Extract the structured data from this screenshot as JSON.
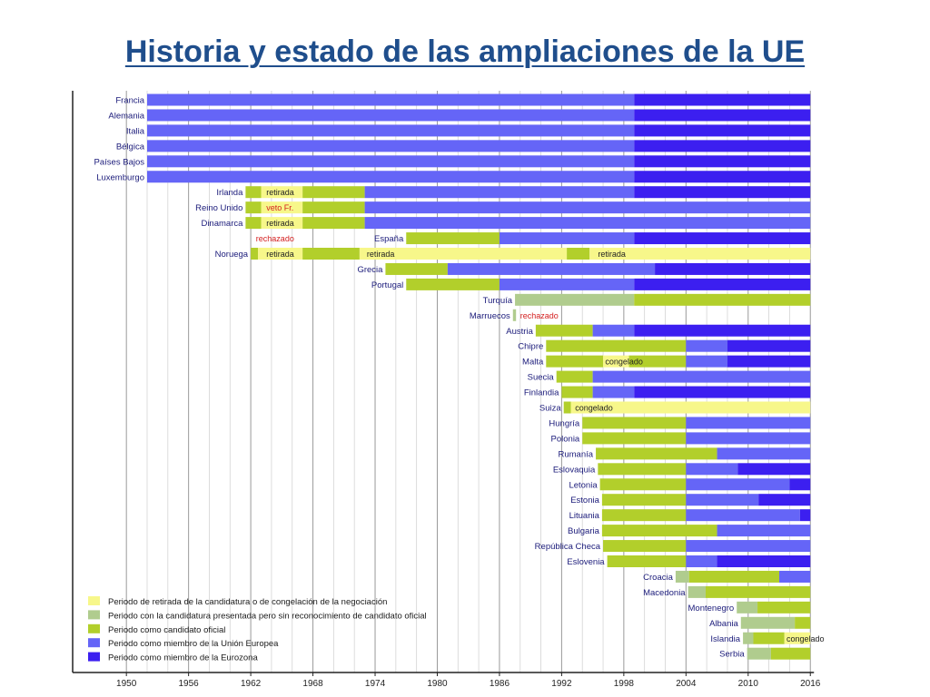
{
  "title": "Historia y estado de las ampliaciones de la UE",
  "chart_data": {
    "type": "timeline",
    "x_range": [
      1948,
      2016
    ],
    "x_ticks": [
      "1950",
      "1956",
      "1962",
      "1968",
      "1974",
      "1980",
      "1986",
      "1992",
      "1998",
      "2004",
      "2010",
      "2016"
    ],
    "colors": {
      "W": "#f7f78a",
      "P": "#b0cc8e",
      "C": "#b2cf2b",
      "M": "#6565f7",
      "E": "#3c1ff0"
    },
    "legend": [
      {
        "key": "W",
        "label": "Periodo de retirada de la candidatura o de congelación de la negociación"
      },
      {
        "key": "P",
        "label": "Periodo con la candidatura presentada pero sin reconocimiento de candidato oficial"
      },
      {
        "key": "C",
        "label": "Periodo como candidato oficial"
      },
      {
        "key": "M",
        "label": "Periodo como miembro de la Unión Europea"
      },
      {
        "key": "E",
        "label": "Periodo como miembro de la Eurozona"
      }
    ],
    "rows": [
      {
        "country": "Francia",
        "segments": [
          [
            "M",
            1952,
            1999
          ],
          [
            "E",
            1999,
            2016
          ]
        ]
      },
      {
        "country": "Alemania",
        "segments": [
          [
            "M",
            1952,
            1999
          ],
          [
            "E",
            1999,
            2016
          ]
        ]
      },
      {
        "country": "Italia",
        "segments": [
          [
            "M",
            1952,
            1999
          ],
          [
            "E",
            1999,
            2016
          ]
        ]
      },
      {
        "country": "Bélgica",
        "segments": [
          [
            "M",
            1952,
            1999
          ],
          [
            "E",
            1999,
            2016
          ]
        ]
      },
      {
        "country": "Países Bajos",
        "segments": [
          [
            "M",
            1952,
            1999
          ],
          [
            "E",
            1999,
            2016
          ]
        ]
      },
      {
        "country": "Luxemburgo",
        "segments": [
          [
            "M",
            1952,
            1999
          ],
          [
            "E",
            1999,
            2016
          ]
        ]
      },
      {
        "country": "Irlanda",
        "segments": [
          [
            "C",
            1961.5,
            1963
          ],
          [
            "W",
            1963,
            1967
          ],
          [
            "C",
            1967,
            1973
          ],
          [
            "M",
            1973,
            1999
          ],
          [
            "E",
            1999,
            2016
          ]
        ]
      },
      {
        "country": "Reino Unido",
        "segments": [
          [
            "C",
            1961.5,
            1963
          ],
          [
            "W",
            1963,
            1967
          ],
          [
            "C",
            1967,
            1973
          ],
          [
            "M",
            1973,
            2016
          ]
        ]
      },
      {
        "country": "Dinamarca",
        "segments": [
          [
            "C",
            1961.5,
            1963
          ],
          [
            "W",
            1963,
            1967
          ],
          [
            "C",
            1967,
            1973
          ],
          [
            "M",
            1973,
            2016
          ]
        ]
      },
      {
        "country": "España",
        "segments": [
          [
            "C",
            1977,
            1986
          ],
          [
            "M",
            1986,
            1999
          ],
          [
            "E",
            1999,
            2016
          ]
        ]
      },
      {
        "country": "Noruega",
        "segments": [
          [
            "C",
            1962,
            1962.7
          ],
          [
            "W",
            1962.7,
            1967
          ],
          [
            "C",
            1967,
            1972.5
          ],
          [
            "W",
            1972.5,
            1992.5
          ],
          [
            "C",
            1992.5,
            1994.7
          ],
          [
            "W",
            1994.7,
            2016
          ]
        ]
      },
      {
        "country": "Grecia",
        "segments": [
          [
            "C",
            1975,
            1981
          ],
          [
            "M",
            1981,
            2001
          ],
          [
            "E",
            2001,
            2016
          ]
        ]
      },
      {
        "country": "Portugal",
        "segments": [
          [
            "C",
            1977,
            1986
          ],
          [
            "M",
            1986,
            1999
          ],
          [
            "E",
            1999,
            2016
          ]
        ]
      },
      {
        "country": "Turquía",
        "segments": [
          [
            "P",
            1987.5,
            1999
          ],
          [
            "C",
            1999,
            2016
          ]
        ]
      },
      {
        "country": "Marruecos",
        "segments": [
          [
            "P",
            1987.3,
            1987.6
          ]
        ]
      },
      {
        "country": "Austria",
        "segments": [
          [
            "C",
            1989.5,
            1995
          ],
          [
            "M",
            1995,
            1999
          ],
          [
            "E",
            1999,
            2016
          ]
        ]
      },
      {
        "country": "Chipre",
        "segments": [
          [
            "C",
            1990.5,
            2004
          ],
          [
            "M",
            2004,
            2008
          ],
          [
            "E",
            2008,
            2016
          ]
        ]
      },
      {
        "country": "Malta",
        "segments": [
          [
            "C",
            1990.5,
            1996
          ],
          [
            "W",
            1996,
            1998.5
          ],
          [
            "C",
            1998.5,
            2004
          ],
          [
            "M",
            2004,
            2008
          ],
          [
            "E",
            2008,
            2016
          ]
        ]
      },
      {
        "country": "Suecia",
        "segments": [
          [
            "C",
            1991.5,
            1995
          ],
          [
            "M",
            1995,
            2016
          ]
        ]
      },
      {
        "country": "Finlandia",
        "segments": [
          [
            "C",
            1992,
            1995
          ],
          [
            "M",
            1995,
            1999
          ],
          [
            "E",
            1999,
            2016
          ]
        ]
      },
      {
        "country": "Suiza",
        "segments": [
          [
            "C",
            1992.2,
            1992.9
          ],
          [
            "W",
            1992.9,
            2016
          ]
        ]
      },
      {
        "country": "Hungría",
        "segments": [
          [
            "C",
            1994,
            2004
          ],
          [
            "M",
            2004,
            2016
          ]
        ]
      },
      {
        "country": "Polonia",
        "segments": [
          [
            "C",
            1994,
            2004
          ],
          [
            "M",
            2004,
            2016
          ]
        ]
      },
      {
        "country": "Rumanía",
        "segments": [
          [
            "C",
            1995.3,
            2007
          ],
          [
            "M",
            2007,
            2016
          ]
        ]
      },
      {
        "country": "Eslovaquia",
        "segments": [
          [
            "C",
            1995.5,
            2004
          ],
          [
            "M",
            2004,
            2009
          ],
          [
            "E",
            2009,
            2016
          ]
        ]
      },
      {
        "country": "Letonia",
        "segments": [
          [
            "C",
            1995.7,
            2004
          ],
          [
            "M",
            2004,
            2014
          ],
          [
            "E",
            2014,
            2016
          ]
        ]
      },
      {
        "country": "Estonia",
        "segments": [
          [
            "C",
            1995.9,
            2004
          ],
          [
            "M",
            2004,
            2011
          ],
          [
            "E",
            2011,
            2016
          ]
        ]
      },
      {
        "country": "Lituania",
        "segments": [
          [
            "C",
            1995.9,
            2004
          ],
          [
            "M",
            2004,
            2015
          ],
          [
            "E",
            2015,
            2016
          ]
        ]
      },
      {
        "country": "Bulgaria",
        "segments": [
          [
            "C",
            1995.9,
            2007
          ],
          [
            "M",
            2007,
            2016
          ]
        ]
      },
      {
        "country": "República Checa",
        "segments": [
          [
            "C",
            1996,
            2004
          ],
          [
            "M",
            2004,
            2016
          ]
        ]
      },
      {
        "country": "Eslovenia",
        "segments": [
          [
            "C",
            1996.4,
            2004
          ],
          [
            "M",
            2004,
            2007
          ],
          [
            "E",
            2007,
            2016
          ]
        ]
      },
      {
        "country": "Croacia",
        "segments": [
          [
            "P",
            2003,
            2004.3
          ],
          [
            "C",
            2004.3,
            2013
          ],
          [
            "M",
            2013,
            2016
          ]
        ]
      },
      {
        "country": "Macedonia",
        "segments": [
          [
            "P",
            2004.2,
            2005.9
          ],
          [
            "C",
            2005.9,
            2016
          ]
        ]
      },
      {
        "country": "Montenegro",
        "segments": [
          [
            "P",
            2008.9,
            2010.9
          ],
          [
            "C",
            2010.9,
            2016
          ]
        ]
      },
      {
        "country": "Albania",
        "segments": [
          [
            "P",
            2009.3,
            2014.5
          ],
          [
            "C",
            2014.5,
            2016
          ]
        ]
      },
      {
        "country": "Islandia",
        "segments": [
          [
            "P",
            2009.5,
            2010.5
          ],
          [
            "C",
            2010.5,
            2013.5
          ],
          [
            "W",
            2013.5,
            2016
          ]
        ]
      },
      {
        "country": "Serbia",
        "segments": [
          [
            "P",
            2009.9,
            2012.2
          ],
          [
            "C",
            2012.2,
            2016
          ]
        ]
      }
    ],
    "annotations": [
      {
        "country": "Irlanda",
        "x": 1963.5,
        "text": "retirada",
        "color": "#222222"
      },
      {
        "country": "Reino Unido",
        "x": 1963.5,
        "text": "veto Fr.",
        "color": "#d42020"
      },
      {
        "country": "Dinamarca",
        "x": 1963.5,
        "text": "retirada",
        "color": "#222222"
      },
      {
        "country": "España",
        "x": 1962.5,
        "text": "rechazado",
        "color": "#d42020"
      },
      {
        "country": "Noruega",
        "x": 1963.5,
        "text": "retirada",
        "color": "#222222"
      },
      {
        "country": "Noruega",
        "x": 1973.2,
        "text": "retirada",
        "color": "#222222"
      },
      {
        "country": "Noruega",
        "x": 1995.5,
        "text": "retirada",
        "color": "#222222"
      },
      {
        "country": "Marruecos",
        "x": 1988.0,
        "text": "rechazado",
        "color": "#d42020"
      },
      {
        "country": "Malta",
        "x": 1996.2,
        "text": "congelado",
        "color": "#222222"
      },
      {
        "country": "Suiza",
        "x": 1993.3,
        "text": "congelado",
        "color": "#222222"
      },
      {
        "country": "Islandia",
        "x": 2013.7,
        "text": "congelado",
        "color": "#222222"
      }
    ]
  }
}
